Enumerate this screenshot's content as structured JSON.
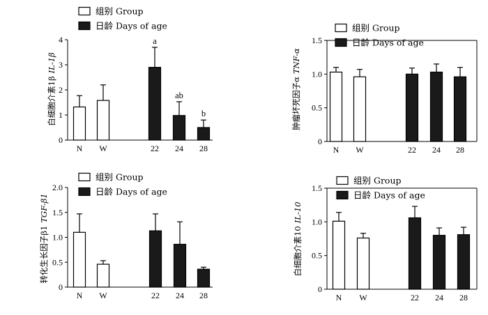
{
  "legend": {
    "group_label": "组别  Group",
    "age_label": "日龄  Days of age"
  },
  "colors": {
    "open_fill": "#ffffff",
    "solid_fill": "#1a1a1a",
    "stroke": "#000000"
  },
  "chart_data": [
    {
      "type": "bar",
      "ylabel_cn": "白细胞介素1β",
      "ylabel_en": "IL-1β",
      "ylim": [
        0,
        4
      ],
      "yticks": [
        "0",
        "1",
        "2",
        "3",
        "4"
      ],
      "categories": [
        "N",
        "W",
        "22",
        "24",
        "28"
      ],
      "series": [
        {
          "name": "组别  Group",
          "values": [
            1.32,
            1.58,
            null,
            null,
            null
          ],
          "errors": [
            0.45,
            0.62,
            null,
            null,
            null
          ]
        },
        {
          "name": "日龄  Days of age",
          "values": [
            null,
            null,
            2.9,
            0.98,
            0.5
          ],
          "errors": [
            null,
            null,
            0.8,
            0.55,
            0.3
          ]
        }
      ],
      "annotations": [
        "",
        "",
        "a",
        "ab",
        "b"
      ]
    },
    {
      "type": "bar",
      "ylabel_cn": "肿瘤坏死因子α",
      "ylabel_en": "TNF-α",
      "ylim": [
        0,
        1.5
      ],
      "yticks": [
        "0",
        "0.5",
        "1.0",
        "1.5"
      ],
      "categories": [
        "N",
        "W",
        "22",
        "24",
        "28"
      ],
      "series": [
        {
          "name": "组别  Group",
          "values": [
            1.03,
            0.96,
            null,
            null,
            null
          ],
          "errors": [
            0.07,
            0.11,
            null,
            null,
            null
          ]
        },
        {
          "name": "日龄  Days of age",
          "values": [
            null,
            null,
            1.0,
            1.03,
            0.96
          ],
          "errors": [
            null,
            null,
            0.09,
            0.12,
            0.14
          ]
        }
      ],
      "annotations": [
        "",
        "",
        "",
        "",
        ""
      ]
    },
    {
      "type": "bar",
      "ylabel_cn": "转化生长因子β1",
      "ylabel_en": "TGF-β1",
      "ylim": [
        0,
        2.0
      ],
      "yticks": [
        "0",
        "0.5",
        "1.0",
        "1.5",
        "2.0"
      ],
      "categories": [
        "N",
        "W",
        "22",
        "24",
        "28"
      ],
      "series": [
        {
          "name": "组别  Group",
          "values": [
            1.1,
            0.46,
            null,
            null,
            null
          ],
          "errors": [
            0.37,
            0.07,
            null,
            null,
            null
          ]
        },
        {
          "name": "日龄  Days of age",
          "values": [
            null,
            null,
            1.13,
            0.86,
            0.36
          ],
          "errors": [
            null,
            null,
            0.34,
            0.45,
            0.04
          ]
        }
      ],
      "annotations": [
        "",
        "",
        "",
        "",
        ""
      ]
    },
    {
      "type": "bar",
      "ylabel_cn": "白细胞介素10",
      "ylabel_en": "IL-10",
      "ylim": [
        0,
        1.5
      ],
      "yticks": [
        "0",
        "0.5",
        "1.0",
        "1.5"
      ],
      "categories": [
        "N",
        "W",
        "22",
        "24",
        "28"
      ],
      "series": [
        {
          "name": "组别  Group",
          "values": [
            1.01,
            0.76,
            null,
            null,
            null
          ],
          "errors": [
            0.13,
            0.07,
            null,
            null,
            null
          ]
        },
        {
          "name": "日龄  Days of age",
          "values": [
            null,
            null,
            1.06,
            0.8,
            0.81
          ],
          "errors": [
            null,
            null,
            0.17,
            0.11,
            0.11
          ]
        }
      ],
      "annotations": [
        "",
        "",
        "",
        "",
        ""
      ]
    }
  ]
}
